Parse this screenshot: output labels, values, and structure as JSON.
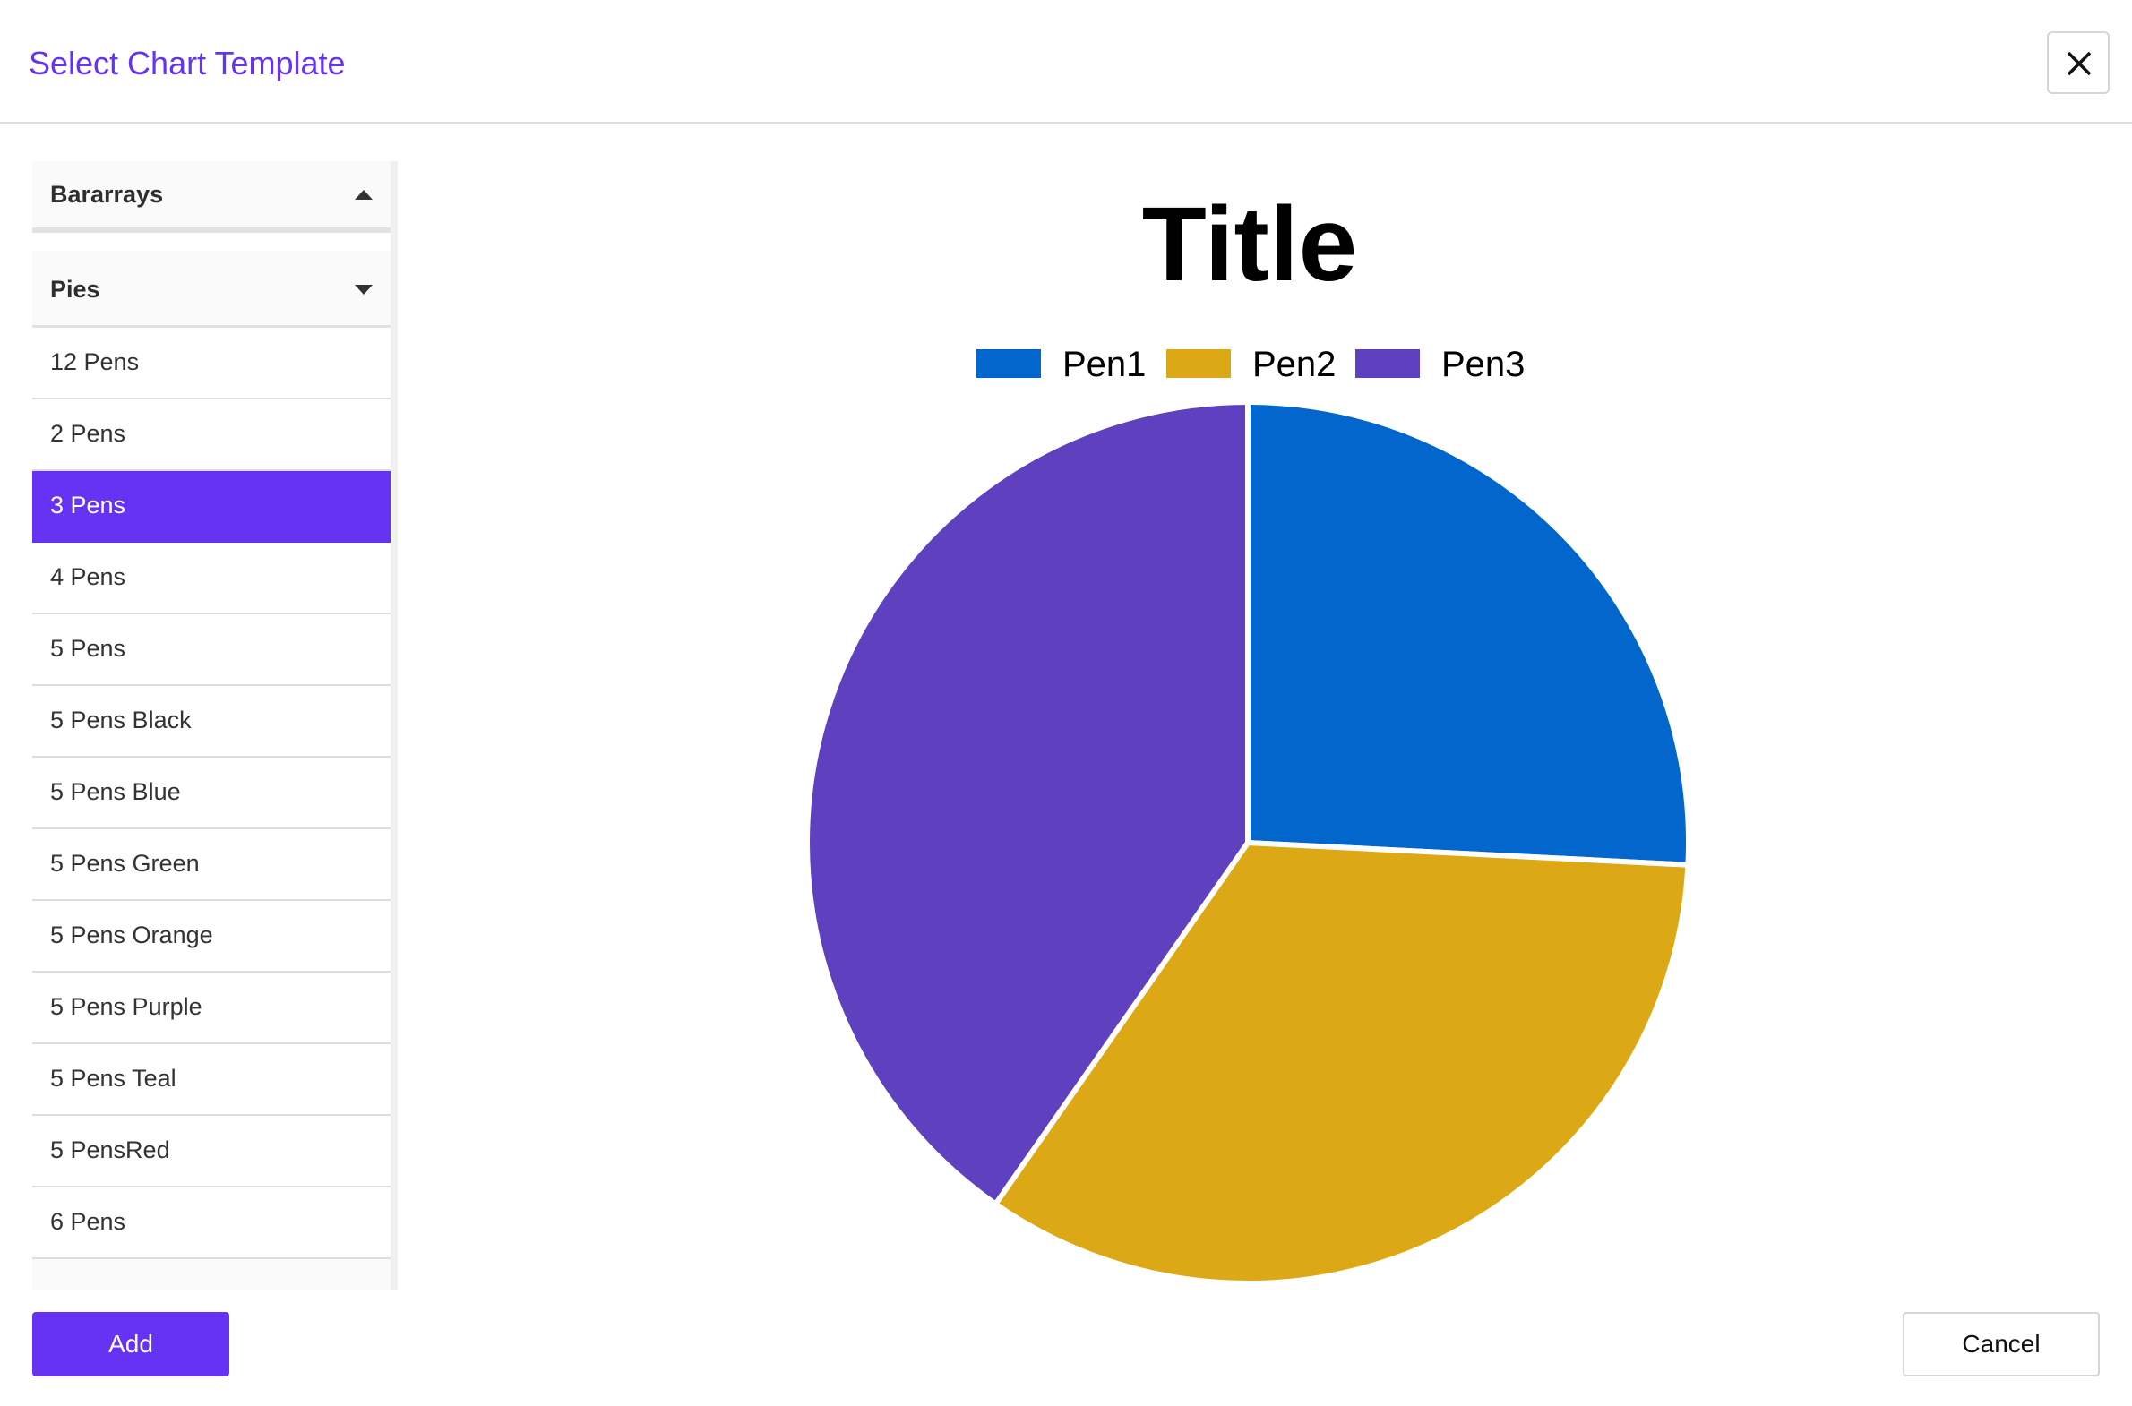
{
  "dialog": {
    "title": "Select Chart Template",
    "close_icon": "close-icon"
  },
  "sidebar": {
    "groups": [
      {
        "label": "Bararrays",
        "state": "collapsed",
        "caret_icon": "caret-up-icon"
      },
      {
        "label": "Pies",
        "state": "expanded",
        "caret_icon": "caret-down-icon"
      }
    ],
    "items": [
      {
        "label": "12 Pens"
      },
      {
        "label": "2 Pens"
      },
      {
        "label": "3 Pens",
        "selected": true
      },
      {
        "label": "4 Pens"
      },
      {
        "label": "5 Pens"
      },
      {
        "label": "5 Pens Black"
      },
      {
        "label": "5 Pens Blue"
      },
      {
        "label": "5 Pens Green"
      },
      {
        "label": "5 Pens Orange"
      },
      {
        "label": "5 Pens Purple"
      },
      {
        "label": "5 Pens Teal"
      },
      {
        "label": "5 PensRed"
      },
      {
        "label": "6 Pens"
      }
    ],
    "selected_color": "#6633f5"
  },
  "chart_data": {
    "type": "pie",
    "title": "Title",
    "legend_position": "top",
    "categories": [
      "Pen1",
      "Pen2",
      "Pen3"
    ],
    "values": [
      25.8,
      33.9,
      40.3
    ],
    "colors": [
      "#0366cc",
      "#dca815",
      "#5f40bf"
    ],
    "start": "top",
    "direction": "clockwise"
  },
  "footer": {
    "add_label": "Add",
    "cancel_label": "Cancel"
  }
}
